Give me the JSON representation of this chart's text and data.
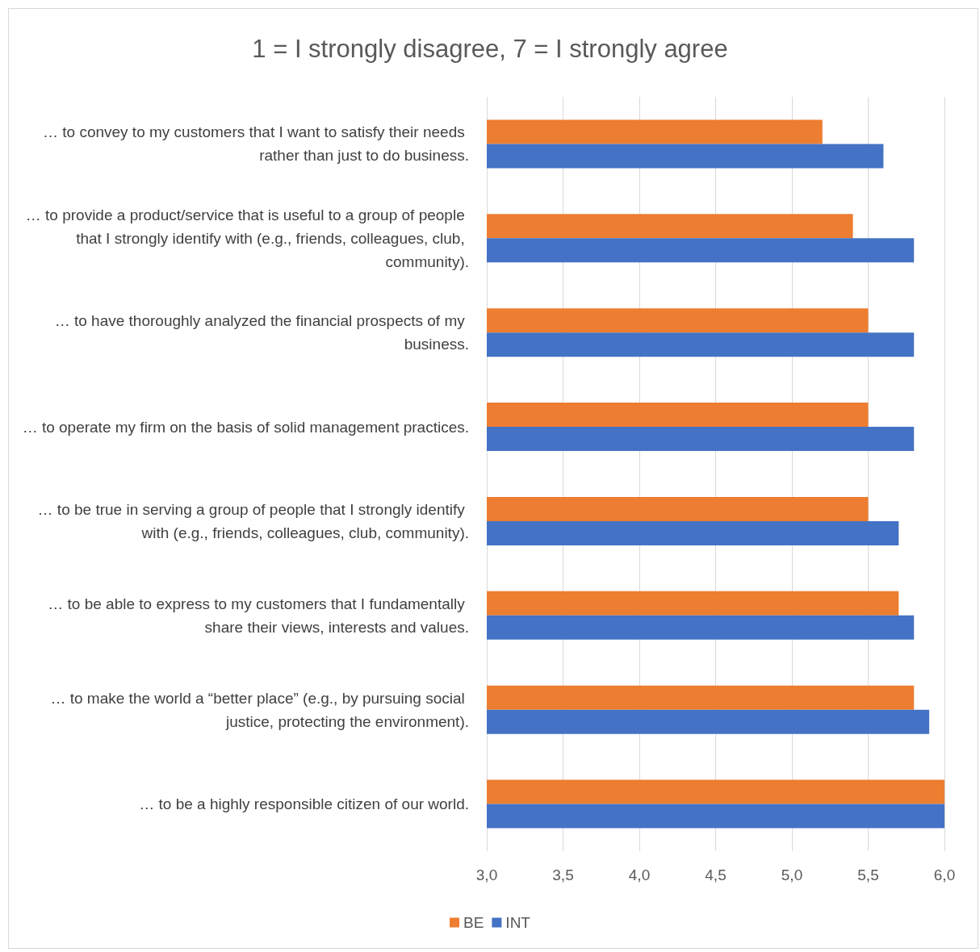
{
  "chart_data": {
    "type": "bar",
    "orientation": "horizontal",
    "title": "1 = I strongly disagree, 7 = I strongly agree",
    "categories": [
      "… to convey to my customers that I want to satisfy their needs rather than just to do business.",
      "… to provide a product/service that is useful to a group of people that I strongly identify with (e.g., friends, colleagues, club, community).",
      "… to have thoroughly analyzed the financial prospects of my business.",
      "… to operate my firm on the basis of solid management practices.",
      "… to be true in serving a group of people that I strongly identify with (e.g., friends, colleagues, club, community).",
      "… to be able to express to my customers that I fundamentally share their views, interests and values.",
      "… to make the world a “better place” (e.g., by pursuing social justice, protecting the environment).",
      "… to be a highly responsible citizen of our world."
    ],
    "series": [
      {
        "name": "BE",
        "color": "#ed7d31",
        "values": [
          5.2,
          5.4,
          5.5,
          5.5,
          5.5,
          5.7,
          5.8,
          6.0
        ]
      },
      {
        "name": "INT",
        "color": "#4472c4",
        "values": [
          5.6,
          5.8,
          5.8,
          5.8,
          5.7,
          5.8,
          5.9,
          6.0
        ]
      }
    ],
    "xlim": [
      3.0,
      6.0
    ],
    "xticks": [
      {
        "value": 3.0,
        "label": "3,0"
      },
      {
        "value": 3.5,
        "label": "3,5"
      },
      {
        "value": 4.0,
        "label": "4,0"
      },
      {
        "value": 4.5,
        "label": "4,5"
      },
      {
        "value": 5.0,
        "label": "5,0"
      },
      {
        "value": 5.5,
        "label": "5,5"
      },
      {
        "value": 6.0,
        "label": "6,0"
      }
    ],
    "grid": "x",
    "legend": "bottom"
  }
}
